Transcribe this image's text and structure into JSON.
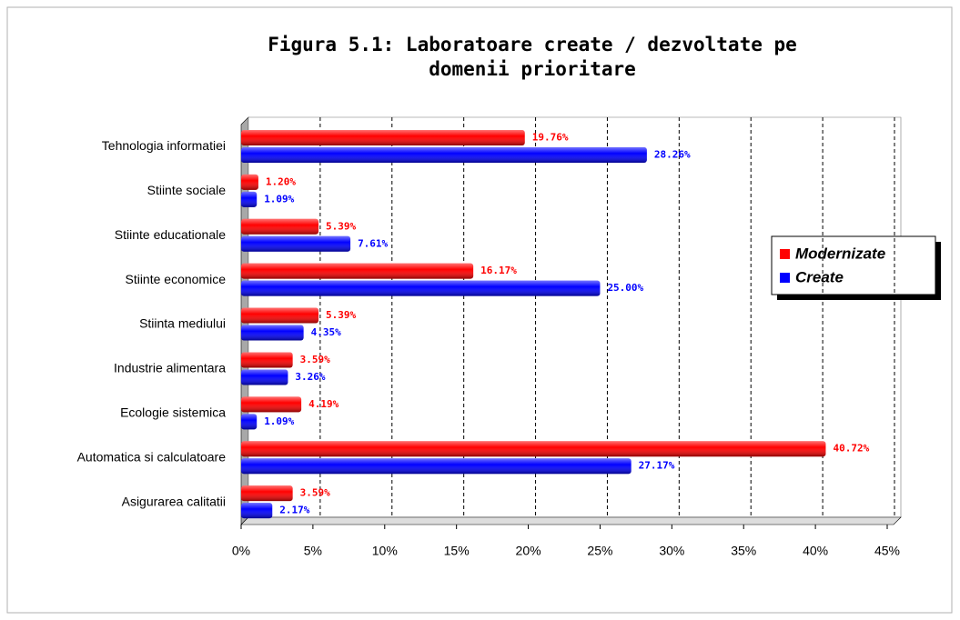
{
  "chart_data": {
    "type": "bar",
    "title": "Figura 5.1: Laboratoare create / dezvoltate pe domenii prioritare",
    "categories": [
      "Tehnologia informatiei",
      "Stiinte sociale",
      "Stiinte educationale",
      "Stiinte economice",
      "Stiinta mediului",
      "Industrie alimentara",
      "Ecologie sistemica",
      "Automatica si calculatoare",
      "Asigurarea calitatii"
    ],
    "series": [
      {
        "name": "Modernizate",
        "color": "#ff0000",
        "values": [
          19.76,
          1.2,
          5.39,
          16.17,
          5.39,
          3.59,
          4.19,
          40.72,
          3.59
        ],
        "value_labels": [
          "19.76%",
          "1.20%",
          "5.39%",
          "16.17%",
          "5.39%",
          "3.59%",
          "4.19%",
          "40.72%",
          "3.59%"
        ]
      },
      {
        "name": "Create",
        "color": "#0000ff",
        "values": [
          28.26,
          1.09,
          7.61,
          25.0,
          4.35,
          3.26,
          1.09,
          27.17,
          2.17
        ],
        "value_labels": [
          "28.26%",
          "1.09%",
          "7.61%",
          "25.00%",
          "4.35%",
          "3.26%",
          "1.09%",
          "27.17%",
          "2.17%"
        ]
      }
    ],
    "xlim": [
      0,
      45
    ],
    "xticks": [
      {
        "value": 0,
        "label": "0%"
      },
      {
        "value": 5,
        "label": "5%"
      },
      {
        "value": 10,
        "label": "10%"
      },
      {
        "value": 15,
        "label": "15%"
      },
      {
        "value": 20,
        "label": "20%"
      },
      {
        "value": 25,
        "label": "25%"
      },
      {
        "value": 30,
        "label": "30%"
      },
      {
        "value": 35,
        "label": "35%"
      },
      {
        "value": 40,
        "label": "40%"
      },
      {
        "value": 45,
        "label": "45%"
      }
    ],
    "grid": true,
    "legend": "right"
  }
}
